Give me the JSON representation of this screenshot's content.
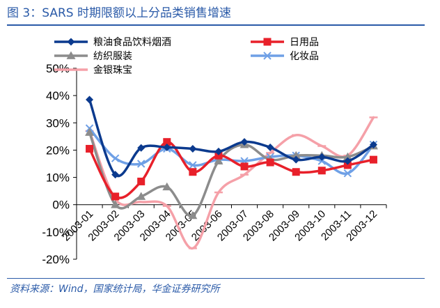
{
  "header": {
    "figure_title": "图 3：SARS 时期限额以上分品类销售增速"
  },
  "footer": {
    "source": "资料来源：Wind，国家统计局，华金证券研究所"
  },
  "chart_data": {
    "type": "line",
    "title": "",
    "xlabel": "",
    "ylabel": "",
    "x": [
      "2003-01",
      "2003-02",
      "2003-03",
      "2003-04",
      "2003-05",
      "2003-06",
      "2003-07",
      "2003-08",
      "2003-09",
      "2003-10",
      "2003-11",
      "2003-12"
    ],
    "ylim": [
      -20,
      50
    ],
    "yticks": [
      -20,
      -10,
      0,
      10,
      20,
      30,
      40,
      50
    ],
    "ytick_labels": [
      "-20%",
      "-10%",
      "0%",
      "10%",
      "20%",
      "30%",
      "40%",
      "50%"
    ],
    "grid": false,
    "legend_position": "top-left",
    "series": [
      {
        "name": "粮油食品饮料烟酒",
        "color": "#0b3a8e",
        "marker": "diamond",
        "values": [
          38.5,
          11.0,
          20.8,
          21.0,
          20.5,
          19.5,
          23.0,
          21.0,
          16.5,
          17.5,
          16.0,
          22.0
        ]
      },
      {
        "name": "日用品",
        "color": "#e8202a",
        "marker": "square",
        "values": [
          20.5,
          3.0,
          8.5,
          23.0,
          12.0,
          18.0,
          14.0,
          15.5,
          12.0,
          12.5,
          14.5,
          16.5
        ]
      },
      {
        "name": "纺织服装",
        "color": "#8c8c8c",
        "marker": "triangle",
        "values": [
          26.5,
          0.0,
          3.0,
          6.5,
          -4.0,
          16.0,
          22.0,
          16.5,
          18.0,
          18.0,
          17.5,
          21.5
        ]
      },
      {
        "name": "化妆品",
        "color": "#6fa0e6",
        "marker": "x",
        "values": [
          28.0,
          17.0,
          15.0,
          20.5,
          14.5,
          16.5,
          16.0,
          17.5,
          18.0,
          16.0,
          11.5,
          22.0
        ]
      },
      {
        "name": "金银珠宝",
        "color": "#f5a0a8",
        "marker": "dash",
        "values": [
          27.0,
          2.0,
          1.0,
          -0.5,
          -16.0,
          4.5,
          11.0,
          19.0,
          25.5,
          21.5,
          18.0,
          32.0
        ]
      }
    ]
  }
}
